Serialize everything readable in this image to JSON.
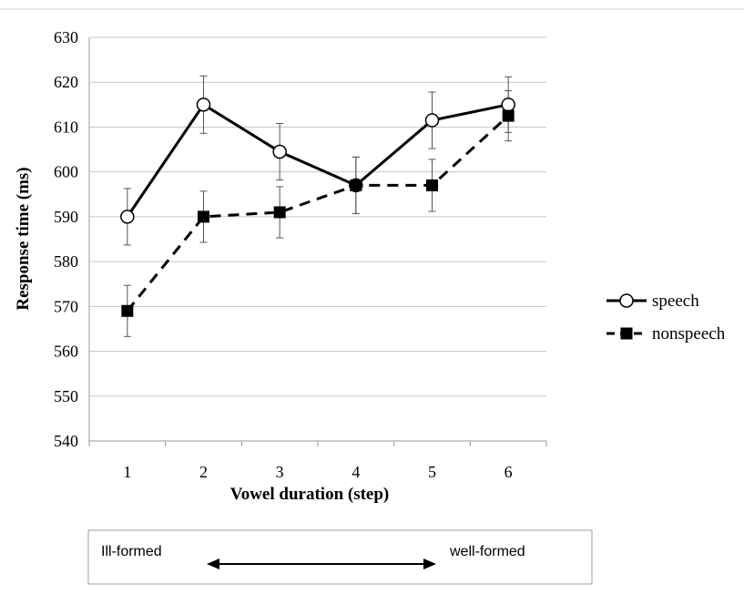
{
  "chart_data": {
    "type": "line",
    "xlabel": "Vowel duration (step)",
    "ylabel": "Response time (ms)",
    "categories": [
      "1",
      "2",
      "3",
      "4",
      "5",
      "6"
    ],
    "ylim": [
      540,
      630
    ],
    "yticks": [
      540,
      550,
      560,
      570,
      580,
      590,
      600,
      610,
      620,
      630
    ],
    "grid": true,
    "legend_position": "right",
    "series": [
      {
        "name": "speech",
        "marker": "open-circle",
        "line_style": "solid",
        "values": [
          590,
          615,
          604.5,
          597,
          611.5,
          615
        ],
        "error": [
          6.3,
          6.4,
          6.3,
          6.3,
          6.3,
          6.2
        ]
      },
      {
        "name": "nonspeech",
        "marker": "filled-square",
        "line_style": "dashed",
        "values": [
          569,
          590,
          591,
          597,
          597,
          612.5
        ],
        "error": [
          5.7,
          5.7,
          5.7,
          6.3,
          5.8,
          5.6
        ]
      }
    ]
  },
  "scale_box": {
    "left_label": "Ill-formed",
    "right_label": "well-formed"
  },
  "colors": {
    "line": "#000000",
    "grid": "#c8c8c8",
    "box_border": "#a0a0a0"
  }
}
